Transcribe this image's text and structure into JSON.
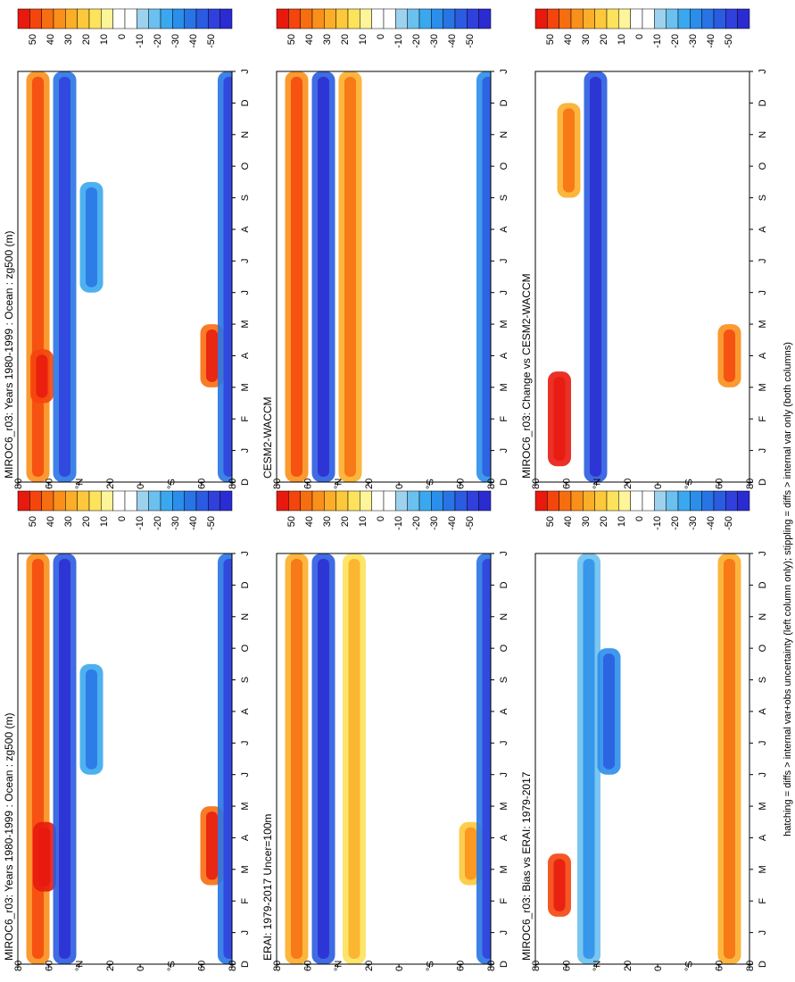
{
  "footnote": "hatching = diffs > internal var+obs uncertainty (left column only); stippling = diffs > internal var only (both columns)",
  "colorbar": {
    "colors": [
      "#e8190f",
      "#f4450d",
      "#f76e10",
      "#fa8f1a",
      "#fcae28",
      "#fdc83b",
      "#fde25b",
      "#fef49a",
      "#ffffff",
      "#ffffff",
      "#9dd2ee",
      "#6ac0ef",
      "#3aa8ee",
      "#2a8eea",
      "#2874e4",
      "#2a5be0",
      "#2f40dc",
      "#2b2bd2"
    ],
    "labels": [
      "50",
      "40",
      "30",
      "20",
      "10",
      "0",
      "-10",
      "-20",
      "-30",
      "-40",
      "-50"
    ]
  },
  "common_axes": {
    "lat_ticks": [
      "80",
      "60",
      "°N",
      "20",
      "0",
      "°S",
      "60",
      "80"
    ],
    "month_ticks": [
      "D",
      "J",
      "F",
      "M",
      "A",
      "M",
      "J",
      "J",
      "A",
      "S",
      "O",
      "N",
      "D",
      "J"
    ]
  },
  "chart_data": [
    {
      "type": "heatmap",
      "title": "MIROC6_r03: Years 1980-1999 : Ocean : zg500 (m)",
      "x": [
        "D",
        "J",
        "F",
        "M",
        "A",
        "M",
        "J",
        "J",
        "A",
        "S",
        "O",
        "N",
        "D",
        "J"
      ],
      "y": [
        "80N",
        "60N",
        "40N",
        "20N",
        "0",
        "20S",
        "40S",
        "60S",
        "80S"
      ],
      "colorbar_range": [
        -50,
        50
      ],
      "features": [
        {
          "lat": 65,
          "months": [
            0,
            13
          ],
          "value": 30
        },
        {
          "lat": 62,
          "months": [
            2.5,
            4.2
          ],
          "value": 40
        },
        {
          "lat": 45,
          "months": [
            0,
            13
          ],
          "value": -30
        },
        {
          "lat": 25,
          "months": [
            6,
            9.5
          ],
          "value": -20
        },
        {
          "lat": -65,
          "months": [
            3,
            5
          ],
          "value": 35
        },
        {
          "lat": -78,
          "months": [
            0,
            13
          ],
          "value": -30
        }
      ]
    },
    {
      "type": "heatmap",
      "title": "MIROC6_r03: Years 1980-1999 : Ocean : zg500 (m)",
      "x": [
        "D",
        "J",
        "F",
        "M",
        "A",
        "M",
        "J",
        "J",
        "A",
        "S",
        "O",
        "N",
        "D",
        "J"
      ],
      "y": [
        "80N",
        "60N",
        "40N",
        "20N",
        "0",
        "20S",
        "40S",
        "60S",
        "80S"
      ],
      "colorbar_range": [
        -50,
        50
      ],
      "features": [
        {
          "lat": 65,
          "months": [
            0,
            13
          ],
          "value": 30
        },
        {
          "lat": 60,
          "months": [
            2.3,
            4.5
          ],
          "value": 45
        },
        {
          "lat": 45,
          "months": [
            0,
            13
          ],
          "value": -35
        },
        {
          "lat": 25,
          "months": [
            6,
            9.5
          ],
          "value": -20
        },
        {
          "lat": -65,
          "months": [
            2.5,
            5
          ],
          "value": 35
        },
        {
          "lat": -78,
          "months": [
            0,
            13
          ],
          "value": -30
        }
      ]
    },
    {
      "type": "heatmap",
      "title": "ERAI: 1979-2017 Uncer=100m",
      "x": [
        "D",
        "J",
        "F",
        "M",
        "A",
        "M",
        "J",
        "J",
        "A",
        "S",
        "O",
        "N",
        "D",
        "J"
      ],
      "y": [
        "80N",
        "60N",
        "40N",
        "20N",
        "0",
        "20S",
        "40S",
        "60S",
        "80S"
      ],
      "colorbar_range": [
        -50,
        50
      ],
      "features": [
        {
          "lat": 65,
          "months": [
            0,
            13
          ],
          "value": 25
        },
        {
          "lat": 45,
          "months": [
            0,
            13
          ],
          "value": -35
        },
        {
          "lat": 22,
          "months": [
            0,
            13
          ],
          "value": 15
        },
        {
          "lat": -65,
          "months": [
            2.5,
            4.5
          ],
          "value": 20
        },
        {
          "lat": -78,
          "months": [
            0,
            13
          ],
          "value": -30
        }
      ]
    },
    {
      "type": "heatmap",
      "title": "CESM2-WACCM",
      "x": [
        "D",
        "J",
        "F",
        "M",
        "A",
        "M",
        "J",
        "J",
        "A",
        "S",
        "O",
        "N",
        "D",
        "J"
      ],
      "y": [
        "80N",
        "60N",
        "40N",
        "20N",
        "0",
        "20S",
        "40S",
        "60S",
        "80S"
      ],
      "colorbar_range": [
        -50,
        50
      ],
      "features": [
        {
          "lat": 65,
          "months": [
            0,
            13
          ],
          "value": 30
        },
        {
          "lat": 45,
          "months": [
            0,
            13
          ],
          "value": -35
        },
        {
          "lat": 25,
          "months": [
            0,
            13
          ],
          "value": 25
        },
        {
          "lat": -78,
          "months": [
            0,
            13
          ],
          "value": -25
        }
      ]
    },
    {
      "type": "heatmap",
      "title": "MIROC6_r03: Bias vs ERAI: 1979-2017",
      "x": [
        "D",
        "J",
        "F",
        "M",
        "A",
        "M",
        "J",
        "J",
        "A",
        "S",
        "O",
        "N",
        "D",
        "J"
      ],
      "y": [
        "80N",
        "60N",
        "40N",
        "20N",
        "0",
        "20S",
        "40S",
        "60S",
        "80S"
      ],
      "colorbar_range": [
        -50,
        50
      ],
      "features": [
        {
          "lat": 62,
          "months": [
            1.5,
            3.5
          ],
          "value": 40
        },
        {
          "lat": 40,
          "months": [
            0,
            13
          ],
          "value": -15
        },
        {
          "lat": 25,
          "months": [
            6,
            10
          ],
          "value": -25
        },
        {
          "lat": -65,
          "months": [
            0,
            13
          ],
          "value": 25
        }
      ]
    },
    {
      "type": "heatmap",
      "title": "MIROC6_r03: Change vs CESM2-WACCM",
      "x": [
        "D",
        "J",
        "F",
        "M",
        "A",
        "M",
        "J",
        "J",
        "A",
        "S",
        "O",
        "N",
        "D",
        "J"
      ],
      "y": [
        "80N",
        "60N",
        "40N",
        "20N",
        "0",
        "20S",
        "40S",
        "60S",
        "80S"
      ],
      "colorbar_range": [
        -50,
        50
      ],
      "features": [
        {
          "lat": 62,
          "months": [
            0.5,
            3.5
          ],
          "value": 45
        },
        {
          "lat": 35,
          "months": [
            0,
            13
          ],
          "value": -35
        },
        {
          "lat": 55,
          "months": [
            9,
            12
          ],
          "value": 25
        },
        {
          "lat": -65,
          "months": [
            3,
            5
          ],
          "value": 30
        }
      ]
    }
  ]
}
